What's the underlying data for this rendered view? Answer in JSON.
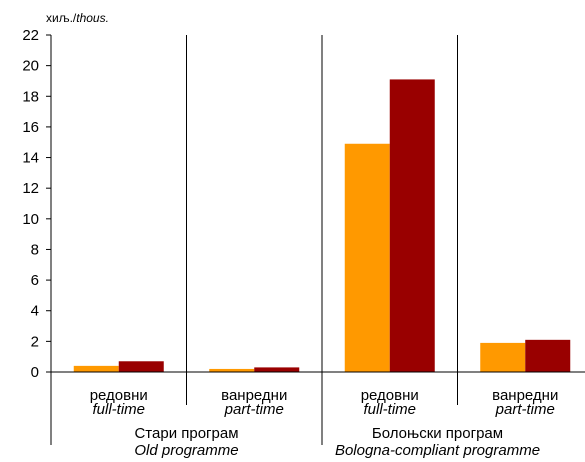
{
  "chart_data": {
    "type": "bar",
    "unit_label": {
      "cyrillic": "хиљ./",
      "latin": "thous."
    },
    "ylim": [
      0,
      22
    ],
    "yticks": [
      0,
      2,
      4,
      6,
      8,
      10,
      12,
      14,
      16,
      18,
      20,
      22
    ],
    "categories": [
      {
        "label": "редовни",
        "label_en": "full-time"
      },
      {
        "label": "ванредни",
        "label_en": "part-time"
      },
      {
        "label": "редовни",
        "label_en": "full-time"
      },
      {
        "label": "ванредни",
        "label_en": "part-time"
      }
    ],
    "groups": [
      {
        "label": "Стари програм",
        "label_en": "Old programme",
        "categories": [
          0,
          1
        ]
      },
      {
        "label": "Болоњски програм",
        "label_en": "Bologna-compliant programme",
        "categories": [
          2,
          3
        ]
      }
    ],
    "series": [
      {
        "color": "#FF9900",
        "values": [
          0.4,
          0.2,
          14.9,
          1.9
        ]
      },
      {
        "color": "#990000",
        "values": [
          0.7,
          0.3,
          19.1,
          2.1
        ]
      }
    ],
    "grid": {
      "y": false,
      "x_category_separators": true
    }
  }
}
